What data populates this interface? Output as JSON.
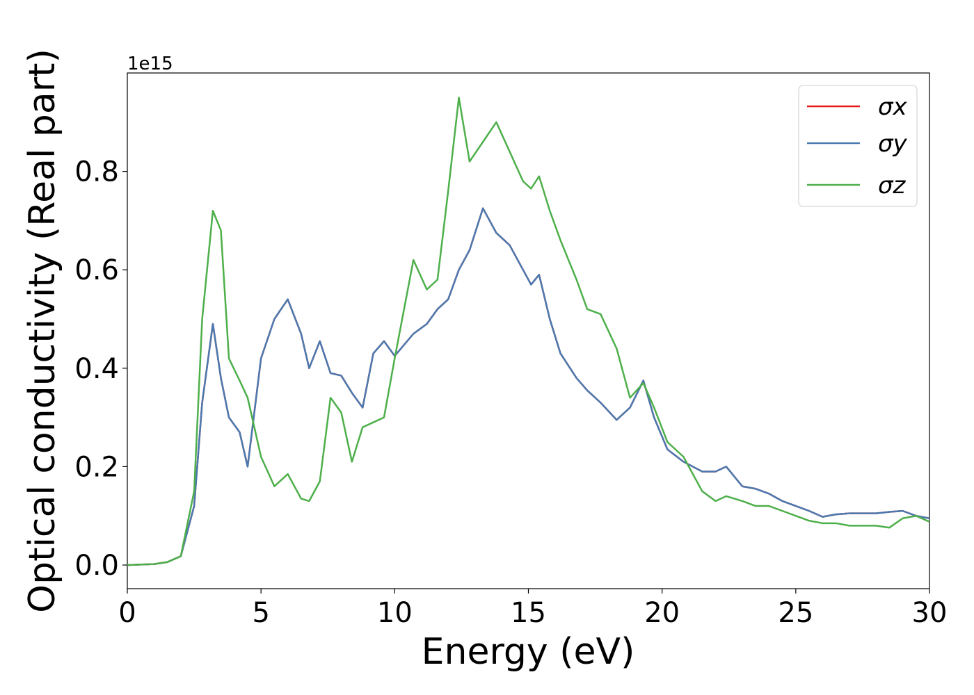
{
  "chart_data": {
    "type": "line",
    "xlabel": "Energy (eV)",
    "ylabel": "Optical conductivity (Real part)",
    "offset_text": "1e15",
    "x": [
      0,
      1,
      1.5,
      2,
      2.5,
      2.8,
      3.2,
      3.5,
      3.8,
      4.2,
      4.5,
      5,
      5.5,
      6,
      6.5,
      6.8,
      7.2,
      7.6,
      8,
      8.4,
      8.8,
      9.2,
      9.6,
      10,
      10.7,
      11.2,
      11.6,
      12,
      12.4,
      12.8,
      13.3,
      13.8,
      14.3,
      14.8,
      15.1,
      15.4,
      15.8,
      16.2,
      16.8,
      17.2,
      17.7,
      18.3,
      18.8,
      19.3,
      19.7,
      20.2,
      20.8,
      21.5,
      22,
      22.4,
      23,
      23.5,
      24,
      24.5,
      25,
      25.5,
      26,
      26.5,
      27,
      28,
      28.5,
      29,
      29.5,
      30
    ],
    "series": [
      {
        "name": "σx",
        "color": "#e41a1c",
        "values": [
          0,
          0.002,
          0.006,
          0.018,
          0.12,
          0.33,
          0.49,
          0.38,
          0.3,
          0.27,
          0.2,
          0.42,
          0.5,
          0.54,
          0.47,
          0.4,
          0.455,
          0.39,
          0.385,
          0.35,
          0.32,
          0.43,
          0.455,
          0.425,
          0.47,
          0.49,
          0.52,
          0.54,
          0.6,
          0.64,
          0.725,
          0.675,
          0.65,
          0.6,
          0.57,
          0.59,
          0.5,
          0.43,
          0.38,
          0.355,
          0.33,
          0.295,
          0.32,
          0.375,
          0.3,
          0.235,
          0.21,
          0.19,
          0.19,
          0.2,
          0.16,
          0.155,
          0.145,
          0.13,
          0.12,
          0.11,
          0.098,
          0.103,
          0.105,
          0.105,
          0.108,
          0.11,
          0.1,
          0.095
        ]
      },
      {
        "name": "σy",
        "color": "#4a7ab0",
        "values": [
          0,
          0.002,
          0.006,
          0.018,
          0.12,
          0.33,
          0.49,
          0.38,
          0.3,
          0.27,
          0.2,
          0.42,
          0.5,
          0.54,
          0.47,
          0.4,
          0.455,
          0.39,
          0.385,
          0.35,
          0.32,
          0.43,
          0.455,
          0.425,
          0.47,
          0.49,
          0.52,
          0.54,
          0.6,
          0.64,
          0.725,
          0.675,
          0.65,
          0.6,
          0.57,
          0.59,
          0.5,
          0.43,
          0.38,
          0.355,
          0.33,
          0.295,
          0.32,
          0.375,
          0.3,
          0.235,
          0.21,
          0.19,
          0.19,
          0.2,
          0.16,
          0.155,
          0.145,
          0.13,
          0.12,
          0.11,
          0.098,
          0.103,
          0.105,
          0.105,
          0.108,
          0.11,
          0.1,
          0.095
        ]
      },
      {
        "name": "σz",
        "color": "#4daf4a",
        "values": [
          0,
          0.002,
          0.006,
          0.018,
          0.15,
          0.5,
          0.72,
          0.68,
          0.42,
          0.375,
          0.34,
          0.22,
          0.16,
          0.185,
          0.135,
          0.13,
          0.17,
          0.34,
          0.31,
          0.21,
          0.28,
          0.29,
          0.3,
          0.42,
          0.62,
          0.56,
          0.58,
          0.76,
          0.95,
          0.82,
          0.86,
          0.9,
          0.84,
          0.78,
          0.765,
          0.79,
          0.72,
          0.66,
          0.58,
          0.52,
          0.51,
          0.44,
          0.34,
          0.37,
          0.32,
          0.25,
          0.22,
          0.15,
          0.13,
          0.14,
          0.13,
          0.12,
          0.12,
          0.11,
          0.1,
          0.09,
          0.085,
          0.085,
          0.08,
          0.08,
          0.076,
          0.095,
          0.1,
          0.088
        ]
      }
    ],
    "xlim": [
      0,
      30
    ],
    "xticks": [
      0,
      5,
      10,
      15,
      20,
      25,
      30
    ],
    "ylim": [
      -0.048,
      1.0
    ],
    "yticks": [
      {
        "value": 0,
        "label": "0.0"
      },
      0.2,
      0.4,
      0.6,
      0.8
    ],
    "legend": "upper right",
    "grid": false
  }
}
